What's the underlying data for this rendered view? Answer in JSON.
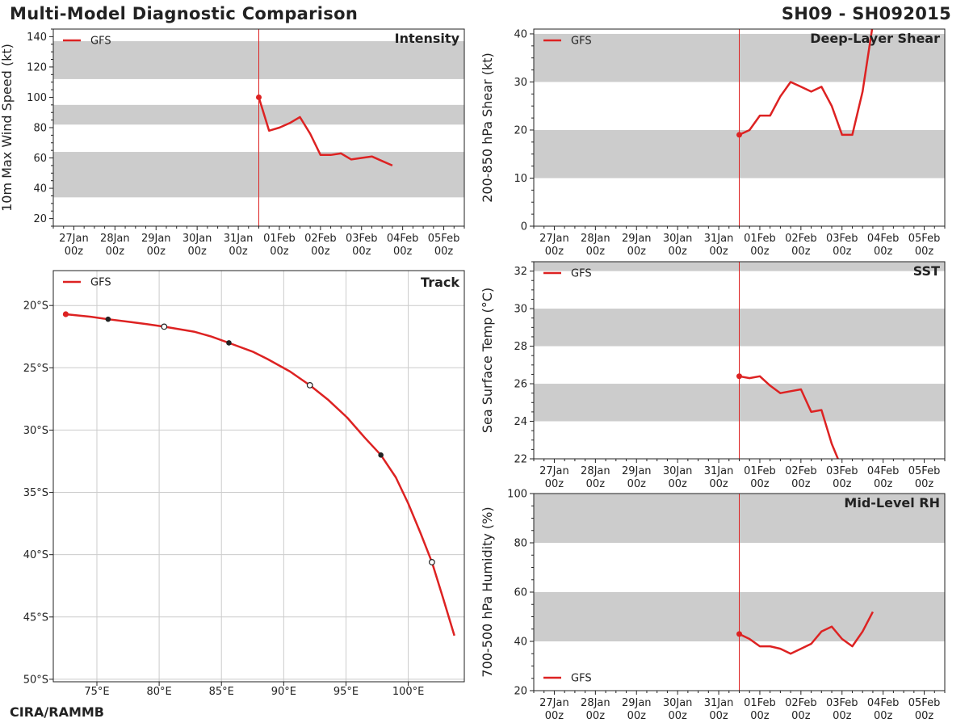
{
  "header": {
    "title": "Multi-Model Diagnostic Comparison",
    "storm": "SH09 - SH092015"
  },
  "footer": {
    "credit": "CIRA/RAMMB"
  },
  "colors": {
    "series": "#dd2222",
    "band": "#cccccc",
    "grid": "#cccccc",
    "axis": "#222222"
  },
  "time_axis": {
    "labels": [
      [
        "27Jan",
        "00z"
      ],
      [
        "28Jan",
        "00z"
      ],
      [
        "29Jan",
        "00z"
      ],
      [
        "30Jan",
        "00z"
      ],
      [
        "31Jan",
        "00z"
      ],
      [
        "01Feb",
        "00z"
      ],
      [
        "02Feb",
        "00z"
      ],
      [
        "03Feb",
        "00z"
      ],
      [
        "04Feb",
        "00z"
      ],
      [
        "05Feb",
        "00z"
      ]
    ],
    "range_days": [
      -0.5,
      9.5
    ],
    "init_day": 4.5
  },
  "chart_data": [
    {
      "id": "intensity",
      "type": "line",
      "title": "Intensity",
      "ylabel": "10m Max Wind Speed (kt)",
      "ylim": [
        15,
        145
      ],
      "yticks": [
        20,
        40,
        60,
        80,
        100,
        120,
        140
      ],
      "bands": [
        [
          34,
          64
        ],
        [
          82,
          95
        ],
        [
          112,
          137
        ]
      ],
      "legend": "GFS",
      "series": [
        {
          "name": "GFS",
          "x": [
            4.5,
            4.75,
            5.0,
            5.25,
            5.5,
            5.75,
            6.0,
            6.25,
            6.5,
            6.75,
            7.0,
            7.25,
            7.5,
            7.75
          ],
          "y": [
            100,
            78,
            80,
            83,
            87,
            76,
            62,
            62,
            63,
            59,
            60,
            61,
            58,
            55
          ]
        }
      ]
    },
    {
      "id": "shear",
      "type": "line",
      "title": "Deep-Layer Shear",
      "ylabel": "200-850 hPa Shear (kt)",
      "ylim": [
        0,
        41
      ],
      "yticks": [
        0,
        10,
        20,
        30,
        40
      ],
      "bands": [
        [
          10,
          20
        ],
        [
          30,
          40
        ]
      ],
      "legend": "GFS",
      "series": [
        {
          "name": "GFS",
          "x": [
            4.5,
            4.75,
            5.0,
            5.25,
            5.5,
            5.75,
            6.0,
            6.25,
            6.5,
            6.75,
            7.0,
            7.25,
            7.5,
            7.75
          ],
          "y": [
            19,
            20,
            23,
            23,
            27,
            30,
            29,
            28,
            29,
            25,
            19,
            19,
            28,
            42
          ]
        }
      ]
    },
    {
      "id": "track",
      "type": "line",
      "title": "Track",
      "legend": "GFS",
      "xlim": [
        71.5,
        104.5
      ],
      "ylim": [
        -50.2,
        -17.2
      ],
      "xticks": [
        75,
        80,
        85,
        90,
        95,
        100
      ],
      "xticklabels": [
        "75°E",
        "80°E",
        "85°E",
        "90°E",
        "95°E",
        "100°E"
      ],
      "yticks": [
        -20,
        -25,
        -30,
        -35,
        -40,
        -45,
        -50
      ],
      "yticklabels": [
        "20°S",
        "25°S",
        "30°S",
        "35°S",
        "40°S",
        "45°S",
        "50°S"
      ],
      "series": [
        {
          "name": "GFS",
          "lon": [
            72.5,
            74.5,
            75.9,
            77.5,
            79.0,
            80.4,
            82.8,
            84.2,
            85.6,
            87.5,
            88.7,
            90.5,
            92.1,
            93.6,
            95.1,
            96.5,
            97.8,
            99.0,
            100.0,
            101.0,
            101.9,
            102.8,
            103.7
          ],
          "lat": [
            -20.7,
            -20.9,
            -21.1,
            -21.3,
            -21.5,
            -21.7,
            -22.1,
            -22.5,
            -23.0,
            -23.7,
            -24.3,
            -25.3,
            -26.4,
            -27.6,
            -29.0,
            -30.6,
            -32.0,
            -33.8,
            -35.9,
            -38.3,
            -40.6,
            -43.5,
            -46.5
          ]
        }
      ],
      "markers": [
        {
          "lon": 72.5,
          "lat": -20.7,
          "style": "init"
        },
        {
          "lon": 75.9,
          "lat": -21.1,
          "style": "filled"
        },
        {
          "lon": 80.4,
          "lat": -21.7,
          "style": "open"
        },
        {
          "lon": 85.6,
          "lat": -23.0,
          "style": "filled"
        },
        {
          "lon": 92.1,
          "lat": -26.4,
          "style": "open"
        },
        {
          "lon": 97.8,
          "lat": -32.0,
          "style": "filled"
        },
        {
          "lon": 101.9,
          "lat": -40.6,
          "style": "open"
        }
      ]
    },
    {
      "id": "sst",
      "type": "line",
      "title": "SST",
      "ylabel": "Sea Surface Temp (°C)",
      "ylim": [
        22,
        32.5
      ],
      "yticks": [
        22,
        24,
        26,
        28,
        30,
        32
      ],
      "bands": [
        [
          24,
          26
        ],
        [
          28,
          30
        ],
        [
          32,
          33
        ]
      ],
      "legend": "GFS",
      "series": [
        {
          "name": "GFS",
          "x": [
            4.5,
            4.75,
            5.0,
            5.25,
            5.5,
            5.75,
            6.0,
            6.25,
            6.5,
            6.75,
            6.9
          ],
          "y": [
            26.4,
            26.3,
            26.4,
            25.9,
            25.5,
            25.6,
            25.7,
            24.5,
            24.6,
            22.8,
            22.0
          ]
        }
      ]
    },
    {
      "id": "rh",
      "type": "line",
      "title": "Mid-Level RH",
      "ylabel": "700-500 hPa Humidity (%)",
      "ylim": [
        20,
        100
      ],
      "yticks": [
        20,
        40,
        60,
        80,
        100
      ],
      "bands": [
        [
          40,
          60
        ],
        [
          80,
          100
        ]
      ],
      "legend": "GFS",
      "series": [
        {
          "name": "GFS",
          "x": [
            4.5,
            4.75,
            5.0,
            5.25,
            5.5,
            5.75,
            6.0,
            6.25,
            6.5,
            6.75,
            7.0,
            7.25,
            7.5,
            7.75
          ],
          "y": [
            43,
            41,
            38,
            38,
            37,
            35,
            37,
            39,
            44,
            46,
            41,
            38,
            44,
            52
          ]
        }
      ]
    }
  ]
}
